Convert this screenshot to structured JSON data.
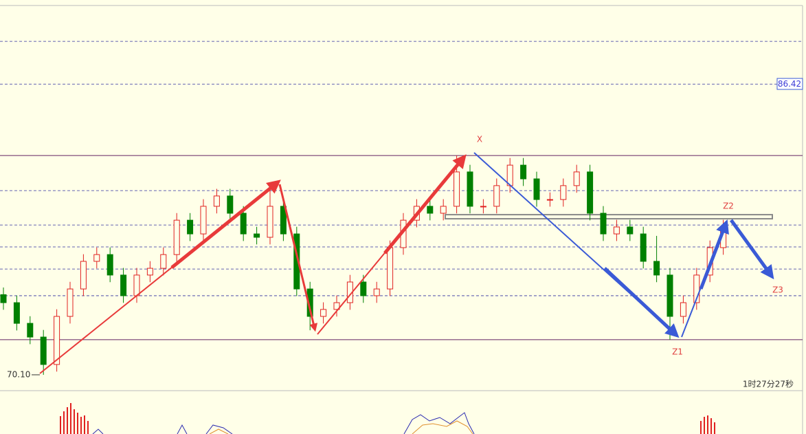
{
  "chart_data": {
    "type": "candlestick",
    "ylim": [
      69.21,
      91.14
    ],
    "ohlc": [
      [
        74.6,
        75.0,
        73.75,
        74.15
      ],
      [
        74.15,
        74.55,
        72.59,
        72.99
      ],
      [
        72.99,
        73.39,
        71.82,
        72.22
      ],
      [
        72.22,
        72.62,
        70.1,
        70.68
      ],
      [
        70.68,
        73.78,
        70.28,
        73.38
      ],
      [
        73.38,
        75.32,
        72.98,
        74.92
      ],
      [
        74.92,
        76.87,
        74.52,
        76.47
      ],
      [
        76.47,
        77.25,
        76.07,
        76.85
      ],
      [
        76.85,
        77.25,
        75.3,
        75.7
      ],
      [
        75.7,
        76.1,
        74.14,
        74.54
      ],
      [
        74.54,
        76.1,
        74.14,
        75.7
      ],
      [
        75.7,
        76.48,
        75.3,
        76.08
      ],
      [
        76.08,
        77.25,
        75.68,
        76.85
      ],
      [
        76.85,
        79.18,
        76.45,
        78.78
      ],
      [
        78.78,
        79.18,
        77.61,
        78.01
      ],
      [
        78.01,
        79.96,
        77.61,
        79.56
      ],
      [
        79.56,
        80.54,
        79.16,
        80.14
      ],
      [
        80.14,
        80.54,
        78.77,
        79.17
      ],
      [
        79.17,
        79.57,
        77.61,
        78.01
      ],
      [
        78.01,
        78.41,
        77.42,
        77.82
      ],
      [
        77.82,
        80.9,
        77.42,
        79.56
      ],
      [
        79.56,
        79.96,
        77.61,
        78.01
      ],
      [
        78.01,
        78.41,
        74.52,
        74.92
      ],
      [
        74.92,
        75.32,
        72.6,
        73.38
      ],
      [
        73.38,
        74.17,
        72.98,
        73.77
      ],
      [
        73.77,
        74.55,
        73.37,
        74.15
      ],
      [
        74.15,
        75.71,
        73.75,
        75.31
      ],
      [
        75.31,
        75.71,
        74.14,
        74.54
      ],
      [
        74.54,
        75.32,
        74.14,
        74.92
      ],
      [
        74.92,
        77.64,
        74.52,
        77.24
      ],
      [
        77.24,
        79.18,
        76.84,
        78.78
      ],
      [
        78.78,
        79.96,
        78.38,
        79.56
      ],
      [
        79.56,
        79.96,
        78.77,
        79.17
      ],
      [
        79.17,
        79.96,
        78.77,
        79.56
      ],
      [
        79.56,
        82.41,
        79.16,
        81.49
      ],
      [
        81.49,
        81.89,
        79.16,
        79.56
      ],
      [
        79.56,
        79.96,
        79.16,
        79.56
      ],
      [
        79.56,
        81.12,
        79.16,
        80.72
      ],
      [
        80.72,
        82.27,
        80.32,
        81.87
      ],
      [
        81.87,
        82.27,
        80.7,
        81.1
      ],
      [
        81.1,
        81.5,
        79.54,
        79.94
      ],
      [
        79.94,
        80.34,
        79.54,
        79.94
      ],
      [
        79.94,
        81.12,
        79.54,
        80.72
      ],
      [
        80.72,
        81.89,
        80.32,
        81.49
      ],
      [
        81.49,
        81.89,
        78.77,
        79.17
      ],
      [
        79.17,
        79.57,
        77.61,
        78.01
      ],
      [
        78.01,
        78.8,
        77.61,
        78.4
      ],
      [
        78.4,
        78.8,
        77.61,
        78.01
      ],
      [
        78.01,
        78.41,
        76.07,
        76.47
      ],
      [
        76.47,
        77.9,
        75.3,
        75.7
      ],
      [
        75.7,
        76.1,
        72.07,
        73.38
      ],
      [
        73.38,
        74.55,
        72.98,
        74.15
      ],
      [
        74.15,
        76.1,
        73.75,
        75.7
      ],
      [
        75.7,
        77.64,
        75.3,
        77.24
      ],
      [
        77.24,
        78.8,
        76.84,
        78.4
      ]
    ],
    "up_color": "#e02020",
    "down_color": "#008000",
    "dashed_levels": [
      88.82,
      86.42,
      80.44,
      78.51,
      77.28,
      76.04,
      74.54
    ],
    "solid_levels": [
      82.41,
      72.07
    ],
    "zone": [
      78.86,
      79.09
    ],
    "price_label": 86.42,
    "low_label": {
      "value": 70.1,
      "label": "70.10"
    },
    "annotations": [
      "X",
      "Z1",
      "Z2",
      "Z3"
    ],
    "timer": "1时27分27秒"
  }
}
